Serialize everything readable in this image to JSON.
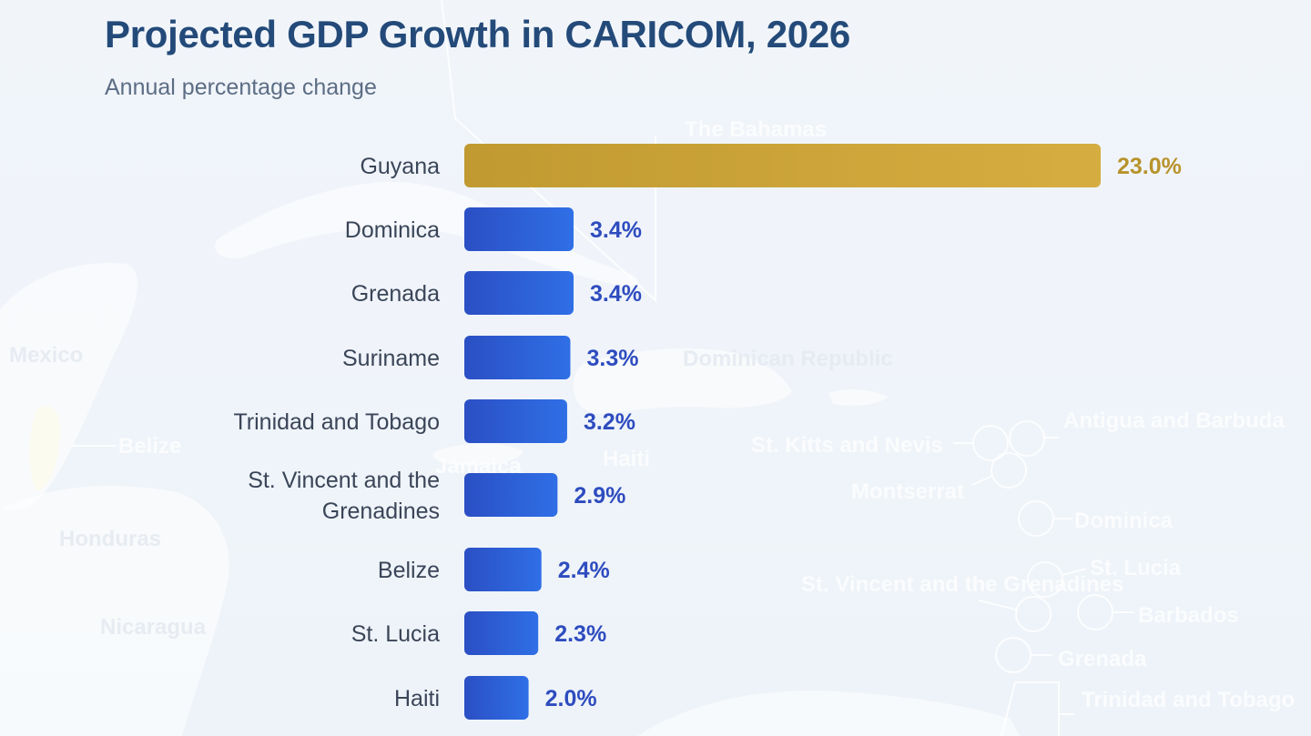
{
  "header": {
    "title": "Projected GDP Growth in CARICOM, 2026",
    "subtitle": "Annual percentage change"
  },
  "colors": {
    "highlight_bar": "#c69d2c",
    "default_bar_start": "#2b4fc4",
    "default_bar_end": "#2f6fe6",
    "highlight_label": "#b8932c",
    "default_label": "#2e4cbf",
    "title": "#234a79",
    "subtitle": "#5c6d84"
  },
  "background_map_labels": [
    "The Bahamas",
    "Mexico",
    "Belize",
    "Honduras",
    "Nicaragua",
    "Jamaica",
    "Haiti",
    "Dominican Republic",
    "St. Kitts and Nevis",
    "Antigua and Barbuda",
    "Montserrat",
    "Dominica",
    "St. Lucia",
    "St. Vincent and the Grenadines",
    "Barbados",
    "Grenada",
    "Trinidad and Tobago"
  ],
  "chart_data": {
    "type": "bar",
    "orientation": "horizontal",
    "title": "Projected GDP Growth in CARICOM, 2026",
    "subtitle": "Annual percentage change",
    "xlabel": "",
    "ylabel": "",
    "unit": "%",
    "grid": false,
    "legend": "none",
    "categories": [
      "Guyana",
      "Dominica",
      "Grenada",
      "Suriname",
      "Trinidad and Tobago",
      "St. Vincent and the Grenadines",
      "Belize",
      "St. Lucia",
      "Haiti"
    ],
    "category_lines": [
      [
        "Guyana"
      ],
      [
        "Dominica"
      ],
      [
        "Grenada"
      ],
      [
        "Suriname"
      ],
      [
        "Trinidad and Tobago"
      ],
      [
        "St. Vincent and the",
        "Grenadines"
      ],
      [
        "Belize"
      ],
      [
        "St. Lucia"
      ],
      [
        "Haiti"
      ]
    ],
    "values": [
      23.0,
      3.4,
      3.4,
      3.3,
      3.2,
      2.9,
      2.4,
      2.3,
      2.0
    ],
    "value_labels": [
      "23.0%",
      "3.4%",
      "3.4%",
      "3.3%",
      "3.2%",
      "2.9%",
      "2.4%",
      "2.3%",
      "2.0%"
    ],
    "highlight": [
      "Guyana"
    ]
  }
}
